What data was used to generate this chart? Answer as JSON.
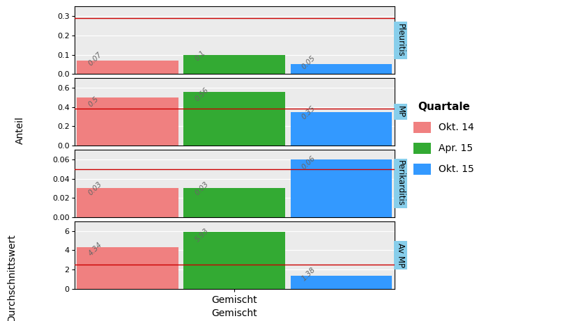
{
  "subplots": [
    {
      "label": "Pleuritis",
      "values": [
        0.07,
        0.1,
        0.05
      ],
      "ref_line": 0.29,
      "ylim": [
        0.0,
        0.35
      ],
      "yticks": [
        0.0,
        0.1,
        0.2,
        0.3
      ]
    },
    {
      "label": "MP",
      "values": [
        0.5,
        0.56,
        0.35
      ],
      "ref_line": 0.38,
      "ylim": [
        0.0,
        0.7
      ],
      "yticks": [
        0.0,
        0.2,
        0.4,
        0.6
      ]
    },
    {
      "label": "Perikarditis",
      "values": [
        0.03,
        0.03,
        0.06
      ],
      "ref_line": 0.05,
      "ylim": [
        0.0,
        0.07
      ],
      "yticks": [
        0.0,
        0.02,
        0.04,
        0.06
      ]
    },
    {
      "label": "Av MP",
      "values": [
        4.34,
        5.93,
        1.38
      ],
      "ref_line": 2.5,
      "ylim": [
        0,
        7
      ],
      "yticks": [
        0,
        2,
        4,
        6
      ]
    }
  ],
  "bar_colors": [
    "#F08080",
    "#33AA33",
    "#3399FF"
  ],
  "bar_color_okt14": "#F08080",
  "bar_color_apr15": "#33AA33",
  "bar_color_okt15": "#3399FF",
  "ref_line_color": "#CC0000",
  "xlabel": "Gemischt",
  "legend_title": "Quartale",
  "legend_labels": [
    "Okt. 14",
    "Apr. 15",
    "Okt. 15"
  ],
  "label_bg_color": "#87CEEB",
  "panel_bg_color": "#EBEBEB",
  "fig_bg_color": "#FFFFFF",
  "value_label_color": "#666666",
  "value_label_fontsize": 7.5,
  "axis_label_fontsize": 10,
  "legend_title_fontsize": 11,
  "legend_label_fontsize": 10,
  "strip_label_fontsize": 8.5,
  "ylabel_anteil": "Anteil",
  "ylabel_durchschnitt": "Durchschnittswert"
}
